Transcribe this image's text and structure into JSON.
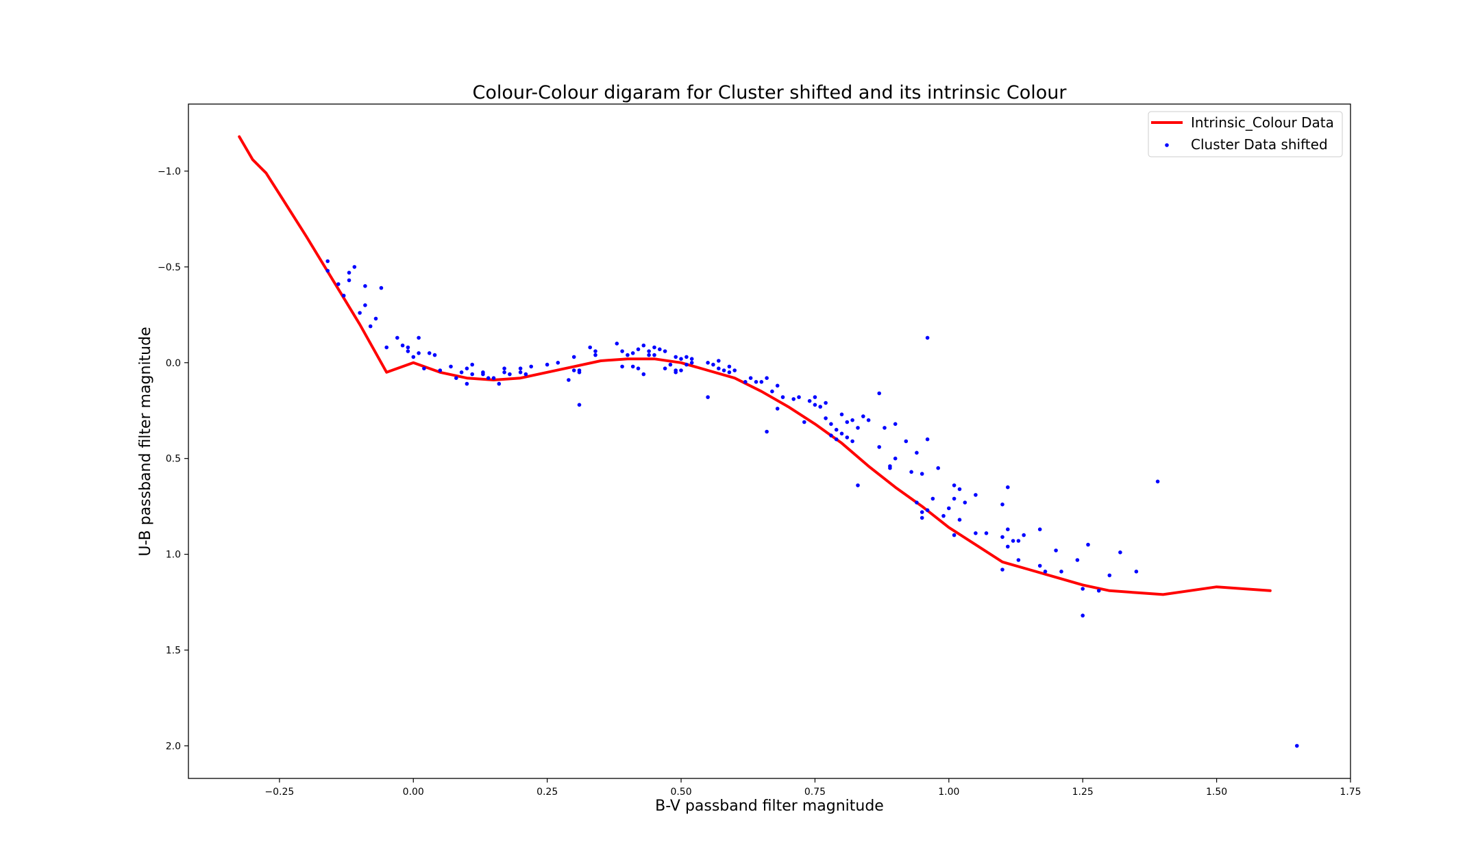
{
  "chart_data": {
    "type": "scatter",
    "title": "Colour-Colour digaram for Cluster shifted and its intrinsic Colour",
    "xlabel": "B-V passband filter magnitude",
    "ylabel": "U-B passband filter magnitude",
    "xlim": [
      -0.42,
      1.75
    ],
    "ylim": [
      2.17,
      -1.35
    ],
    "y_inverted": true,
    "grid": false,
    "legend_position": "top-right",
    "x_ticks": [
      -0.25,
      0.0,
      0.25,
      0.5,
      0.75,
      1.0,
      1.25,
      1.5,
      1.75
    ],
    "x_tick_labels": [
      "−0.25",
      "0.00",
      "0.25",
      "0.50",
      "0.75",
      "1.00",
      "1.25",
      "1.50",
      "1.75"
    ],
    "y_ticks": [
      -1.0,
      -0.5,
      0.0,
      0.5,
      1.0,
      1.5,
      2.0
    ],
    "y_tick_labels": [
      "−1.0",
      "−0.5",
      "0.0",
      "0.5",
      "1.0",
      "1.5",
      "2.0"
    ],
    "series": [
      {
        "name": "Intrinsic_Colour Data",
        "kind": "line",
        "color": "#ff0000",
        "x": [
          -0.325,
          -0.3,
          -0.275,
          -0.25,
          -0.2,
          -0.15,
          -0.1,
          -0.05,
          0.0,
          0.05,
          0.1,
          0.15,
          0.2,
          0.25,
          0.3,
          0.35,
          0.4,
          0.45,
          0.5,
          0.55,
          0.6,
          0.65,
          0.7,
          0.75,
          0.8,
          0.85,
          0.9,
          0.95,
          1.0,
          1.05,
          1.1,
          1.15,
          1.2,
          1.25,
          1.3,
          1.35,
          1.4,
          1.45,
          1.5,
          1.55,
          1.6
        ],
        "y": [
          -1.18,
          -1.06,
          -0.99,
          -0.88,
          -0.66,
          -0.43,
          -0.2,
          0.05,
          0.0,
          0.05,
          0.08,
          0.09,
          0.08,
          0.05,
          0.02,
          -0.01,
          -0.02,
          -0.02,
          0.0,
          0.04,
          0.08,
          0.15,
          0.23,
          0.32,
          0.42,
          0.54,
          0.65,
          0.75,
          0.86,
          0.95,
          1.04,
          1.08,
          1.12,
          1.16,
          1.19,
          1.2,
          1.21,
          1.19,
          1.17,
          1.18,
          1.19
        ]
      },
      {
        "name": "Cluster Data shifted",
        "kind": "scatter",
        "color": "#0000ff",
        "x": [
          -0.16,
          -0.16,
          -0.14,
          -0.13,
          -0.12,
          -0.12,
          -0.11,
          -0.1,
          -0.09,
          -0.09,
          -0.08,
          -0.07,
          -0.06,
          -0.05,
          -0.03,
          -0.02,
          -0.01,
          -0.01,
          0.0,
          0.01,
          0.01,
          0.02,
          0.03,
          0.04,
          0.05,
          0.07,
          0.08,
          0.09,
          0.1,
          0.1,
          0.11,
          0.11,
          0.13,
          0.13,
          0.14,
          0.15,
          0.16,
          0.17,
          0.17,
          0.18,
          0.2,
          0.2,
          0.21,
          0.22,
          0.25,
          0.27,
          0.29,
          0.3,
          0.3,
          0.31,
          0.31,
          0.31,
          0.33,
          0.34,
          0.34,
          0.38,
          0.39,
          0.39,
          0.4,
          0.41,
          0.41,
          0.42,
          0.42,
          0.43,
          0.43,
          0.44,
          0.44,
          0.45,
          0.45,
          0.46,
          0.47,
          0.47,
          0.48,
          0.49,
          0.49,
          0.49,
          0.5,
          0.5,
          0.51,
          0.51,
          0.52,
          0.52,
          0.55,
          0.55,
          0.56,
          0.57,
          0.57,
          0.58,
          0.59,
          0.59,
          0.6,
          0.62,
          0.63,
          0.64,
          0.65,
          0.66,
          0.66,
          0.67,
          0.68,
          0.68,
          0.69,
          0.71,
          0.72,
          0.73,
          0.74,
          0.75,
          0.75,
          0.76,
          0.77,
          0.77,
          0.78,
          0.78,
          0.79,
          0.79,
          0.8,
          0.8,
          0.81,
          0.81,
          0.82,
          0.82,
          0.83,
          0.83,
          0.84,
          0.85,
          0.87,
          0.87,
          0.88,
          0.89,
          0.89,
          0.9,
          0.9,
          0.92,
          0.93,
          0.94,
          0.94,
          0.95,
          0.95,
          0.95,
          0.96,
          0.96,
          0.96,
          0.97,
          0.98,
          0.99,
          1.0,
          1.01,
          1.01,
          1.01,
          1.02,
          1.02,
          1.03,
          1.05,
          1.05,
          1.07,
          1.1,
          1.1,
          1.1,
          1.11,
          1.11,
          1.11,
          1.12,
          1.13,
          1.13,
          1.14,
          1.17,
          1.17,
          1.18,
          1.2,
          1.21,
          1.24,
          1.25,
          1.25,
          1.26,
          1.28,
          1.3,
          1.32,
          1.35,
          1.39,
          1.65
        ],
        "y": [
          -0.53,
          -0.48,
          -0.41,
          -0.35,
          -0.47,
          -0.43,
          -0.5,
          -0.26,
          -0.4,
          -0.3,
          -0.19,
          -0.23,
          -0.39,
          -0.08,
          -0.13,
          -0.09,
          -0.08,
          -0.06,
          -0.03,
          -0.05,
          -0.13,
          0.03,
          -0.05,
          -0.04,
          0.04,
          0.02,
          0.08,
          0.05,
          0.03,
          0.11,
          0.06,
          0.01,
          0.05,
          0.06,
          0.08,
          0.08,
          0.11,
          0.05,
          0.03,
          0.06,
          0.05,
          0.03,
          0.06,
          0.02,
          0.01,
          0.0,
          0.09,
          -0.03,
          0.04,
          0.05,
          0.04,
          0.22,
          -0.08,
          -0.06,
          -0.04,
          -0.1,
          -0.06,
          0.02,
          -0.04,
          -0.05,
          0.02,
          -0.07,
          0.03,
          -0.09,
          0.06,
          -0.06,
          -0.04,
          -0.08,
          -0.04,
          -0.07,
          0.03,
          -0.06,
          0.01,
          -0.03,
          0.04,
          0.05,
          -0.02,
          0.04,
          -0.03,
          0.01,
          0.0,
          -0.02,
          0.0,
          0.18,
          0.01,
          -0.01,
          0.03,
          0.04,
          0.05,
          0.02,
          0.04,
          0.1,
          0.08,
          0.1,
          0.1,
          0.08,
          0.36,
          0.15,
          0.12,
          0.24,
          0.18,
          0.19,
          0.18,
          0.31,
          0.2,
          0.18,
          0.22,
          0.23,
          0.29,
          0.21,
          0.32,
          0.38,
          0.35,
          0.4,
          0.27,
          0.37,
          0.31,
          0.39,
          0.41,
          0.3,
          0.34,
          0.64,
          0.28,
          0.3,
          0.44,
          0.16,
          0.34,
          0.54,
          0.55,
          0.32,
          0.5,
          0.41,
          0.57,
          0.47,
          0.73,
          0.58,
          0.78,
          0.81,
          0.77,
          0.4,
          -0.13,
          0.71,
          0.55,
          0.8,
          0.76,
          0.64,
          0.71,
          0.9,
          0.66,
          0.82,
          0.73,
          0.69,
          0.89,
          0.89,
          0.74,
          0.91,
          1.08,
          0.65,
          0.87,
          0.96,
          0.93,
          1.03,
          0.93,
          0.9,
          0.87,
          1.06,
          1.09,
          0.98,
          1.09,
          1.03,
          1.18,
          1.32,
          0.95,
          1.19,
          1.11,
          0.99,
          1.09,
          0.62,
          2.0
        ]
      }
    ]
  }
}
